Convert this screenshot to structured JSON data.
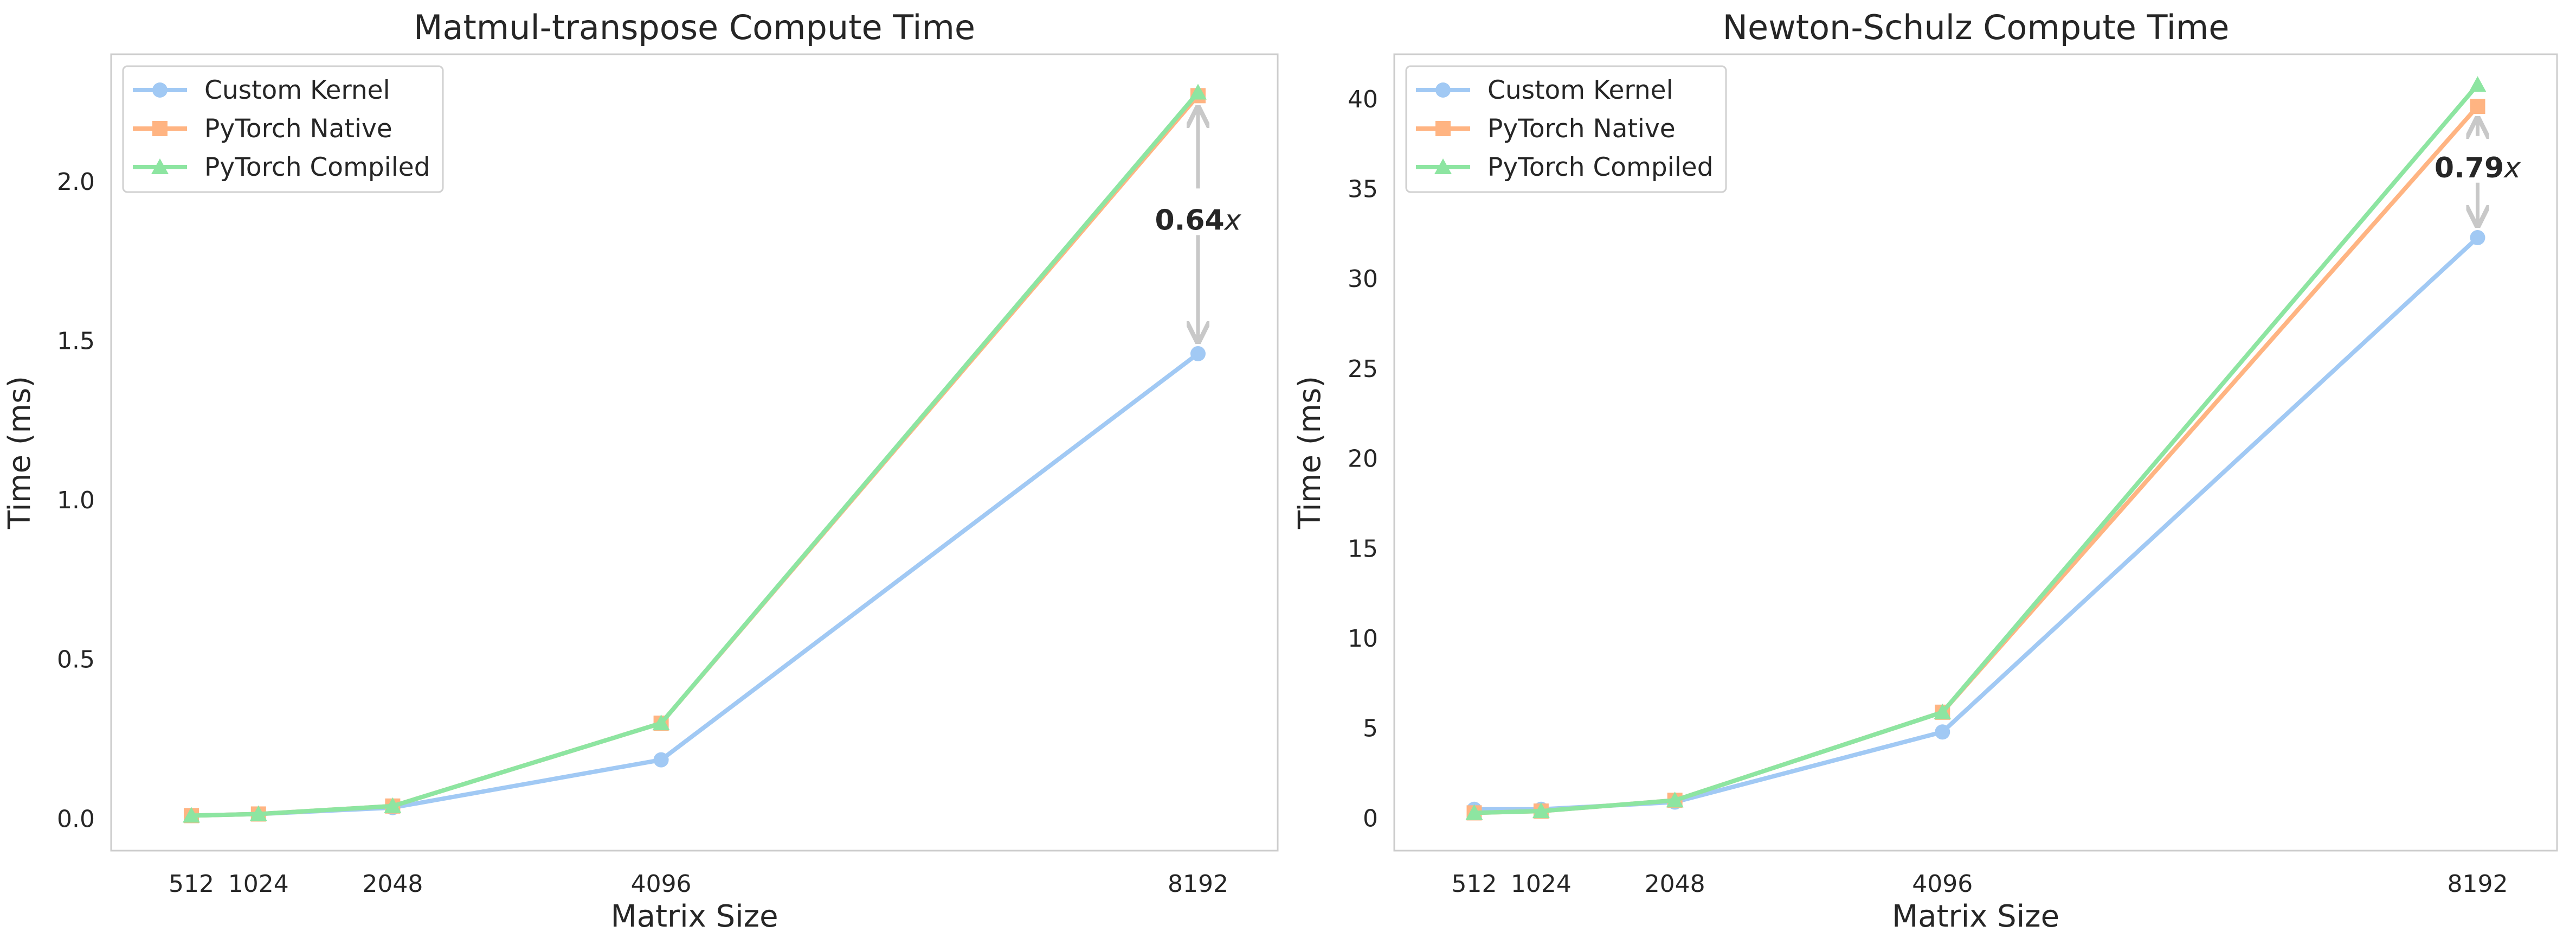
{
  "chart_data": [
    {
      "type": "line",
      "title": "Matmul-transpose Compute Time",
      "xlabel": "Matrix Size",
      "ylabel": "Time (ms)",
      "x": [
        512,
        1024,
        2048,
        4096,
        8192
      ],
      "x_tick_labels": [
        "512",
        "1024",
        "2048",
        "4096",
        "8192"
      ],
      "ylim": [
        -0.1,
        2.4
      ],
      "y_ticks": [
        0.0,
        0.5,
        1.0,
        1.5,
        2.0
      ],
      "y_tick_labels": [
        "0.0",
        "0.5",
        "1.0",
        "1.5",
        "2.0"
      ],
      "grid": false,
      "legend_position": "top-left",
      "series": [
        {
          "name": "Custom Kernel",
          "marker": "circle",
          "color": "#a1c9f4",
          "values": [
            0.01,
            0.015,
            0.035,
            0.185,
            1.46
          ]
        },
        {
          "name": "PyTorch Native",
          "marker": "square",
          "color": "#ffb482",
          "values": [
            0.01,
            0.015,
            0.04,
            0.3,
            2.27
          ]
        },
        {
          "name": "PyTorch Compiled",
          "marker": "triangle",
          "color": "#8de5a1",
          "values": [
            0.01,
            0.015,
            0.04,
            0.3,
            2.28
          ]
        }
      ],
      "annotation": {
        "value": "0.64",
        "suffix": "x",
        "x": 8192,
        "from": 2.27,
        "to": 1.46,
        "text_y": 1.88
      }
    },
    {
      "type": "line",
      "title": "Newton-Schulz Compute Time",
      "xlabel": "Matrix Size",
      "ylabel": "Time (ms)",
      "x": [
        512,
        1024,
        2048,
        4096,
        8192
      ],
      "x_tick_labels": [
        "512",
        "1024",
        "2048",
        "4096",
        "8192"
      ],
      "ylim": [
        -1.8,
        42.5
      ],
      "y_ticks": [
        0,
        5,
        10,
        15,
        20,
        25,
        30,
        35,
        40
      ],
      "y_tick_labels": [
        "0",
        "5",
        "10",
        "15",
        "20",
        "25",
        "30",
        "35",
        "40"
      ],
      "grid": false,
      "legend_position": "top-left",
      "series": [
        {
          "name": "Custom Kernel",
          "marker": "circle",
          "color": "#a1c9f4",
          "values": [
            0.5,
            0.5,
            0.9,
            4.8,
            32.3
          ]
        },
        {
          "name": "PyTorch Native",
          "marker": "square",
          "color": "#ffb482",
          "values": [
            0.3,
            0.4,
            1.0,
            5.9,
            39.6
          ]
        },
        {
          "name": "PyTorch Compiled",
          "marker": "triangle",
          "color": "#8de5a1",
          "values": [
            0.3,
            0.4,
            1.0,
            5.9,
            40.8
          ]
        }
      ],
      "annotation": {
        "value": "0.79",
        "suffix": "x",
        "x": 8192,
        "from": 39.6,
        "to": 32.3,
        "text_y": 36.2
      }
    }
  ]
}
